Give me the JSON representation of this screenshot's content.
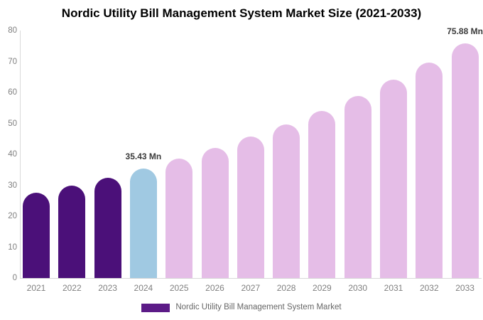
{
  "title": "Nordic Utility Bill Management System Market Size (2021-2033)",
  "legend": {
    "label": "Nordic Utility Bill Management System Market",
    "swatch_color": "#5c1b87"
  },
  "colors": {
    "historical": "#4b1079",
    "base_year": "#a0c9e2",
    "forecast": "#e5bde7",
    "axis_line": "#d9d9d9",
    "tick_label": "#7f7f7f",
    "annotation_text": "#3a3a3a"
  },
  "chart_data": {
    "type": "bar",
    "title": "Nordic Utility Bill Management System Market Size (2021-2033)",
    "xlabel": "",
    "ylabel": "",
    "unit": "Mn",
    "categories": [
      "2021",
      "2022",
      "2023",
      "2024",
      "2025",
      "2026",
      "2027",
      "2028",
      "2029",
      "2030",
      "2031",
      "2032",
      "2033"
    ],
    "values": [
      27.5,
      29.9,
      32.5,
      35.43,
      38.6,
      42.0,
      45.7,
      49.7,
      54.1,
      58.9,
      64.1,
      69.7,
      75.88
    ],
    "bar_roles": [
      "historical",
      "historical",
      "historical",
      "base_year",
      "forecast",
      "forecast",
      "forecast",
      "forecast",
      "forecast",
      "forecast",
      "forecast",
      "forecast",
      "forecast"
    ],
    "annotations": [
      {
        "category": "2024",
        "text": "35.43 Mn"
      },
      {
        "category": "2033",
        "text": "75.88 Mn"
      }
    ],
    "ylim": [
      0,
      80
    ],
    "yticks": [
      0,
      10,
      20,
      30,
      40,
      50,
      60,
      70,
      80
    ],
    "grid": false,
    "legend_position": "bottom",
    "legend_entries": [
      "Nordic Utility Bill Management System Market"
    ]
  }
}
